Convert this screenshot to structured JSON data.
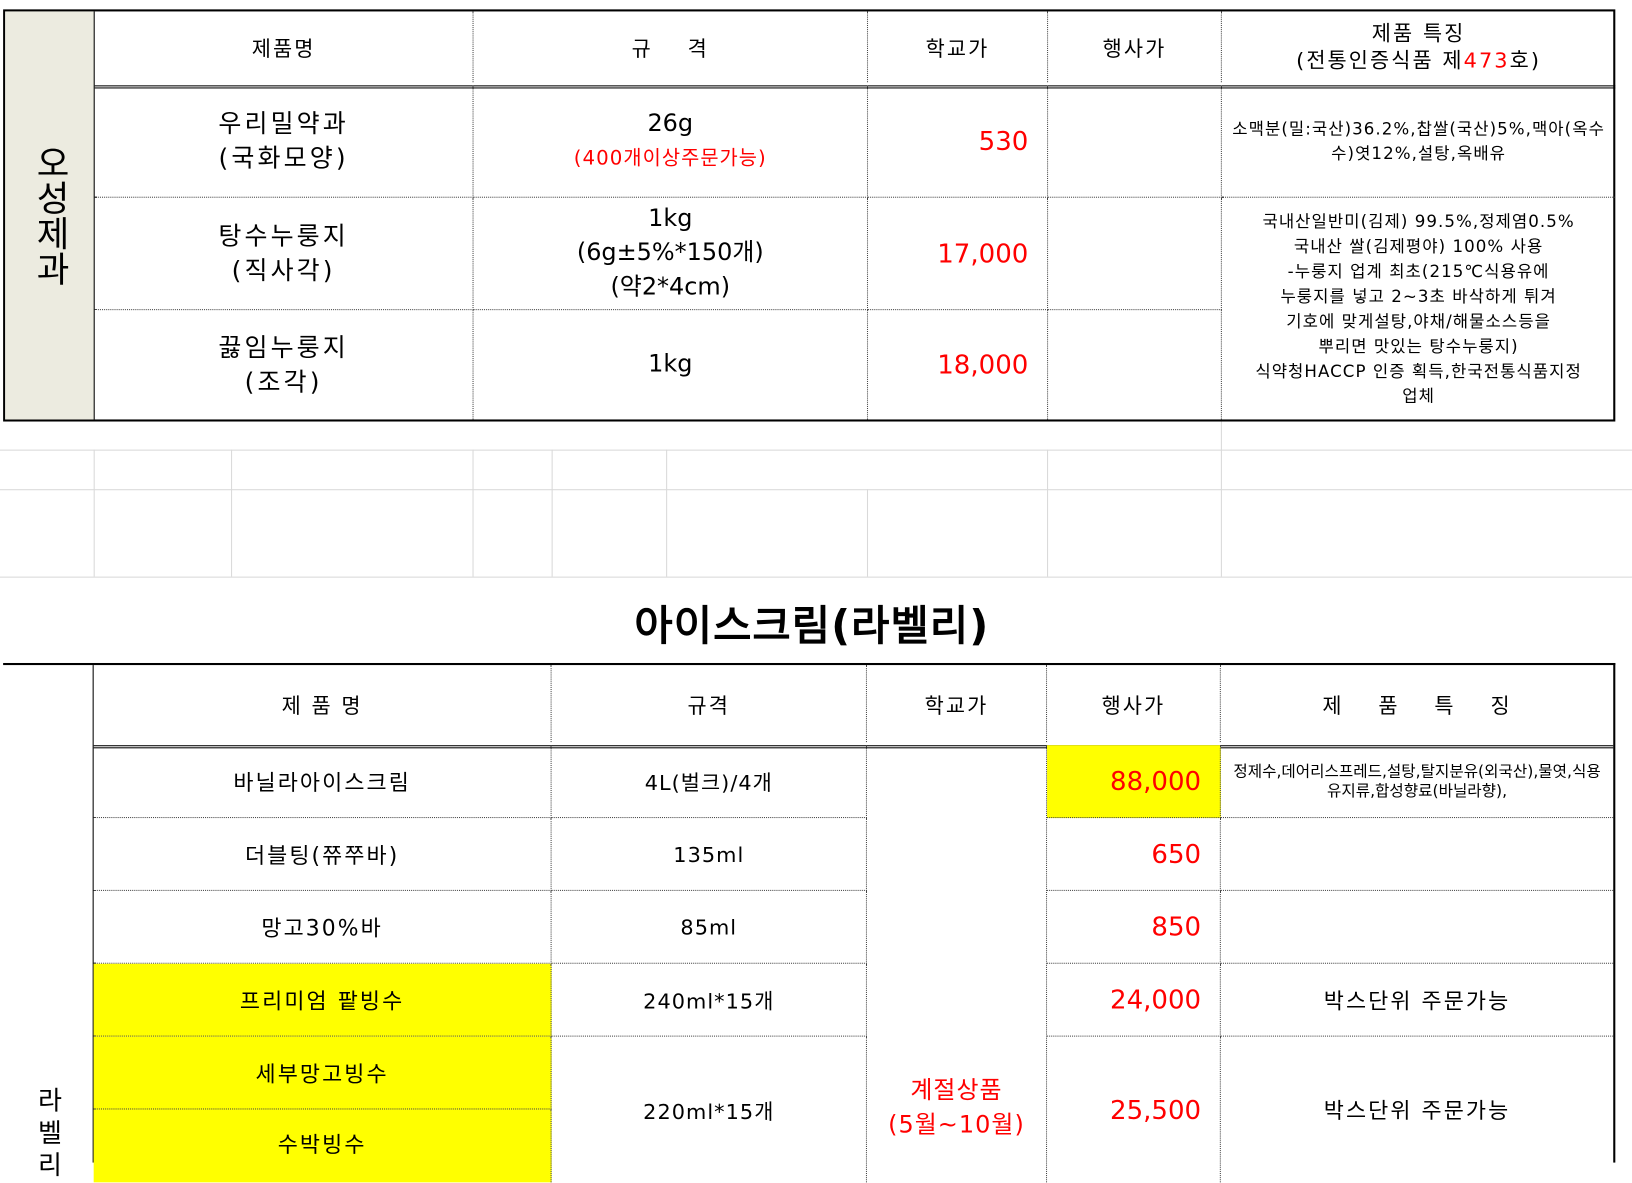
{
  "oseong": {
    "brand": "오성제과",
    "headers": {
      "name": "제품명",
      "spec": "규    격",
      "school_price": "학교가",
      "event_price": "행사가",
      "feature_line1": "제품 특징",
      "feature_line2_pre": "(전통인증식품 제",
      "feature_cert_no": "473",
      "feature_line2_post": "호)"
    },
    "rows": [
      {
        "name1": "우리밀약과",
        "name2": "(국화모양)",
        "spec1": "26g",
        "spec_note": "(400개이상주문가능)",
        "school_price": "530",
        "event_price": "",
        "feature": "소맥분(밀:국산)36.2%,찹쌀(국산)5%,맥아(옥수수)엿12%,설탕,옥배유"
      },
      {
        "name1": "탕수누룽지",
        "name2": "(직사각)",
        "spec1": "1kg",
        "spec2": "(6g±5%*150개)",
        "spec3": "(약2*4cm)",
        "school_price": "17,000",
        "event_price": ""
      },
      {
        "name1": "끓임누룽지",
        "name2": "(조각)",
        "spec1": "1kg",
        "school_price": "18,000",
        "event_price": ""
      }
    ],
    "shared_feature": [
      "국내산일반미(김제) 99.5%,정제염0.5%",
      "국내산 쌀(김제평야) 100% 사용",
      "-누룽지 업계 최초(215℃식용유에",
      "누룽지를 넣고 2~3초 바삭하게 튀겨",
      "기호에 맞게설탕,야채/해물소스등을",
      "뿌리면 맛있는 탕수누룽지)",
      "식약청HACCP 인증 획득,한국전통식품지정",
      "업체"
    ]
  },
  "section_title": "아이스크림(라벨리)",
  "labelly": {
    "brand": "라벨리",
    "headers": {
      "name": "제 품 명",
      "spec": "규격",
      "school_price": "학교가",
      "event_price": "행사가",
      "feature": "제    품    특    징"
    },
    "seasonal_line1": "계절상품",
    "seasonal_line2": "(5월~10월)",
    "rows": [
      {
        "name": "바닐라아이스크림",
        "spec": "4L(벌크)/4개",
        "event_price": "88,000",
        "feature": "정제수,데어리스프레드,설탕,탈지분유(외국산),물엿,식용유지류,합성향료(바닐라향),"
      },
      {
        "name": "더블팅(쮸쭈바)",
        "spec": "135ml",
        "event_price": "650",
        "feature": ""
      },
      {
        "name": "망고30%바",
        "spec": "85ml",
        "event_price": "850",
        "feature": ""
      },
      {
        "name": "프리미엄 팥빙수",
        "spec": "240ml*15개",
        "event_price": "24,000",
        "feature": "박스단위 주문가능"
      },
      {
        "name": "세부망고빙수",
        "spec": "220ml*15개",
        "event_price": "25,500",
        "feature": "박스단위 주문가능"
      },
      {
        "name": "수박빙수"
      }
    ]
  },
  "colors": {
    "highlight": "#ffff00",
    "price": "#ff0000",
    "brand_cell": "#ecebe0"
  }
}
